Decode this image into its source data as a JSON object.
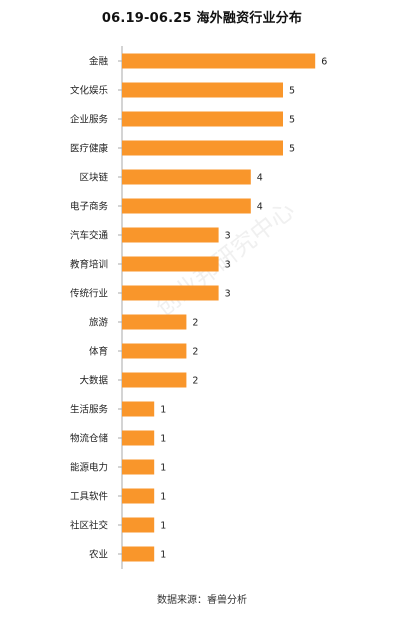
{
  "title": "06.19-06.25 海外融资行业分布",
  "source": "数据来源：睿兽分析",
  "watermark": "创业邦研究中心",
  "colors": {
    "bar": "#F9962B",
    "axis": "#AAAAAA",
    "text": "#222222"
  },
  "chart_data": {
    "type": "bar",
    "orientation": "horizontal",
    "title": "06.19-06.25 海外融资行业分布",
    "categories": [
      "金融",
      "文化娱乐",
      "企业服务",
      "医疗健康",
      "区块链",
      "电子商务",
      "汽车交通",
      "教育培训",
      "传统行业",
      "旅游",
      "体育",
      "大数据",
      "生活服务",
      "物流仓储",
      "能源电力",
      "工具软件",
      "社区社交",
      "农业"
    ],
    "values": [
      6,
      5,
      5,
      5,
      4,
      4,
      3,
      3,
      3,
      2,
      2,
      2,
      1,
      1,
      1,
      1,
      1,
      1
    ],
    "xlim": [
      0,
      6.5
    ],
    "grid": false,
    "data_labels": true
  }
}
